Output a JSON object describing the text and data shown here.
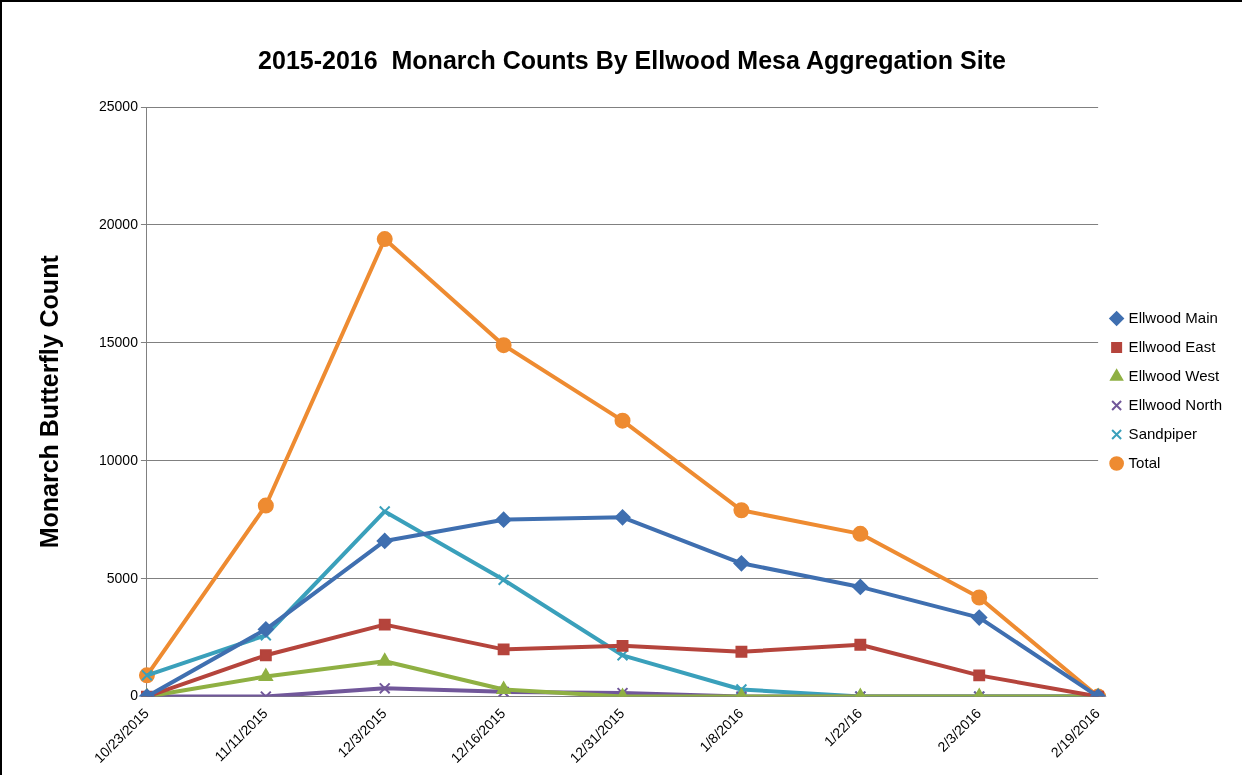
{
  "chart_data": {
    "type": "line",
    "title": "2015-2016  Monarch Counts By Ellwood Mesa Aggregation Site",
    "ylabel": "Monarch Butterfly Count",
    "categories": [
      "10/23/2015",
      "11/11/2015",
      "12/3/2015",
      "12/16/2015",
      "12/31/2015",
      "1/8/2016",
      "1/22/16",
      "2/3/2016",
      "2/19/2016"
    ],
    "series": [
      {
        "name": "Ellwood Main",
        "color": "#3f6fb0",
        "marker": "diamond",
        "values": [
          0,
          2850,
          6600,
          7500,
          7600,
          5650,
          4650,
          3350,
          0
        ]
      },
      {
        "name": "Ellwood East",
        "color": "#b5443c",
        "marker": "square",
        "values": [
          0,
          1750,
          3050,
          2000,
          2150,
          1900,
          2200,
          900,
          0
        ]
      },
      {
        "name": "Ellwood West",
        "color": "#8fb043",
        "marker": "triangle",
        "values": [
          0,
          850,
          1500,
          300,
          0,
          0,
          0,
          0,
          0
        ]
      },
      {
        "name": "Ellwood North",
        "color": "#71579a",
        "marker": "cross",
        "values": [
          0,
          0,
          350,
          200,
          150,
          0,
          0,
          0,
          0
        ]
      },
      {
        "name": "Sandpiper",
        "color": "#3aa0bb",
        "marker": "cross",
        "values": [
          900,
          2600,
          7850,
          4950,
          1750,
          300,
          0,
          0,
          0
        ]
      },
      {
        "name": "Total",
        "color": "#ee8b31",
        "marker": "circle",
        "values": [
          900,
          8100,
          19400,
          14900,
          11700,
          7900,
          6900,
          4200,
          0
        ]
      }
    ],
    "ylim": [
      0,
      25000
    ],
    "yticks": [
      0,
      5000,
      10000,
      15000,
      20000,
      25000
    ],
    "grid": "y",
    "legend": "right"
  }
}
